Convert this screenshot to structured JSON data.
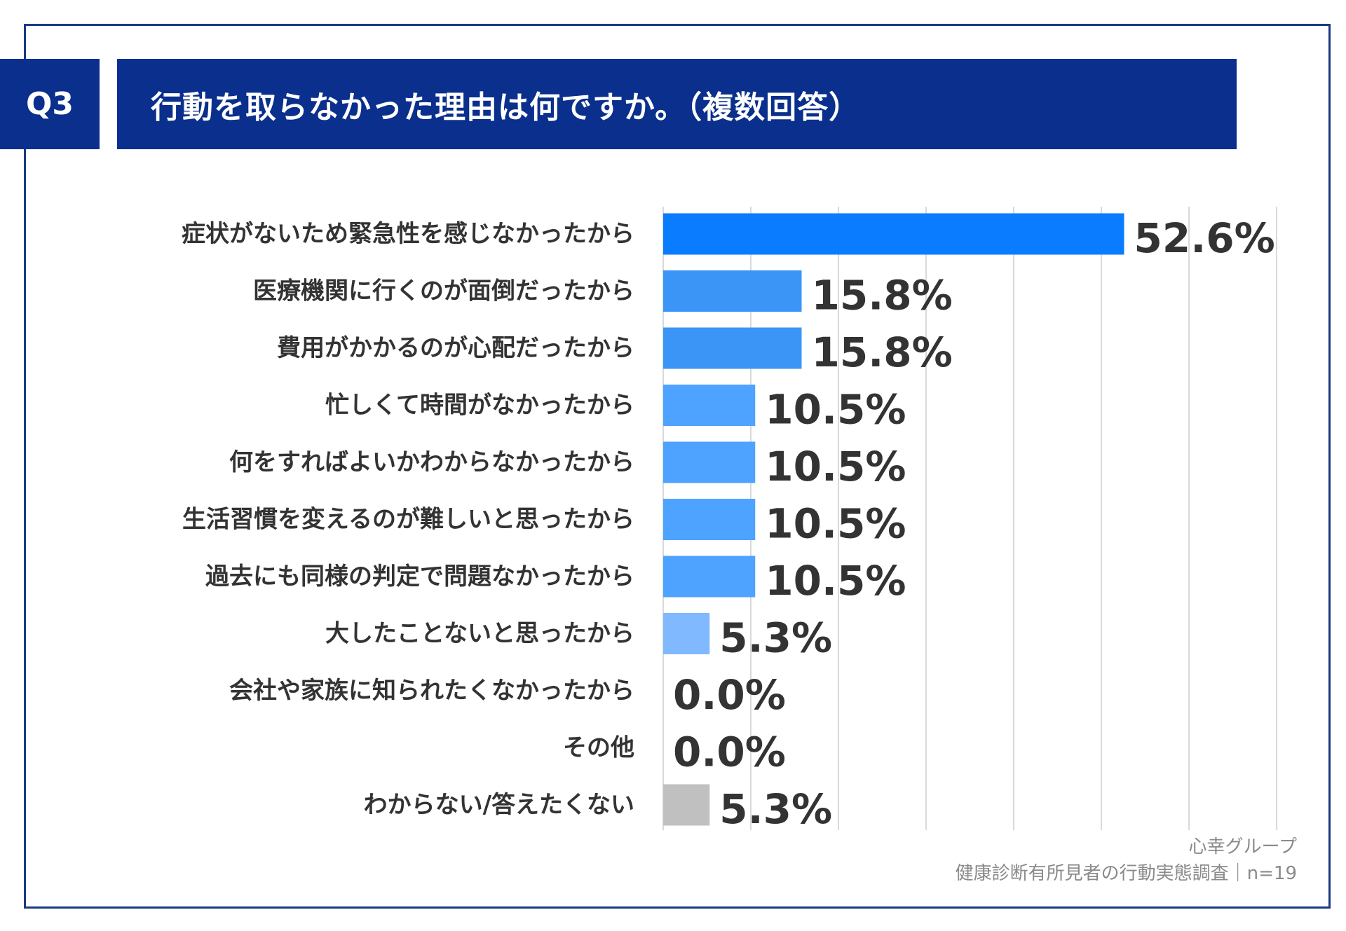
{
  "header": {
    "q_label": "Q3",
    "title": "行動を取らなかった理由は何ですか。（複数回答）"
  },
  "footer": {
    "brand": "心幸グループ",
    "source": "健康診断有所見者の行動実態調査｜n=19"
  },
  "colors": {
    "header_bg": "#0a2f8c",
    "border": "#1a3a82",
    "bar_top": "#0a7cff",
    "bar_mid": "#3a95f7",
    "bar_mid2": "#4da3ff",
    "bar_light": "#80b9ff",
    "bar_gray": "#c0c0c0",
    "grid": "#d9d9d9",
    "text": "#333333"
  },
  "chart_data": {
    "type": "bar",
    "orientation": "horizontal",
    "categories": [
      "症状がないため緊急性を感じなかったから",
      "医療機関に行くのが面倒だったから",
      "費用がかかるのが心配だったから",
      "忙しくて時間がなかったから",
      "何をすればよいかわからなかったから",
      "生活習慣を変えるのが難しいと思ったから",
      "過去にも同様の判定で問題なかったから",
      "大したことないと思ったから",
      "会社や家族に知られたくなかったから",
      "その他",
      "わからない/答えたくない"
    ],
    "values": [
      52.6,
      15.8,
      15.8,
      10.5,
      10.5,
      10.5,
      10.5,
      5.3,
      0.0,
      0.0,
      5.3
    ],
    "value_labels": [
      "52.6%",
      "15.8%",
      "15.8%",
      "10.5%",
      "10.5%",
      "10.5%",
      "10.5%",
      "5.3%",
      "0.0%",
      "0.0%",
      "5.3%"
    ],
    "bar_colors": [
      "#0a7cff",
      "#3a95f7",
      "#3a95f7",
      "#4da3ff",
      "#4da3ff",
      "#4da3ff",
      "#4da3ff",
      "#80b9ff",
      "#80b9ff",
      "#80b9ff",
      "#c0c0c0"
    ],
    "xlim": [
      0,
      70
    ],
    "grid_step": 10,
    "grid": true,
    "legend": false
  }
}
